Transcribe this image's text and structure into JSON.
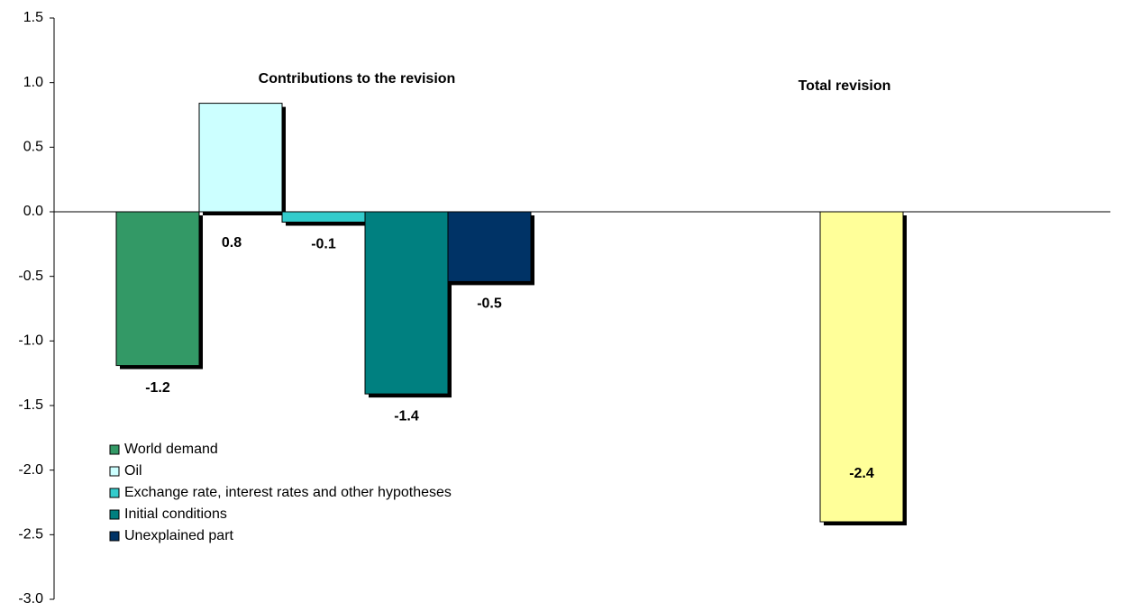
{
  "chart_data": {
    "type": "bar",
    "annotations": [
      "Contributions to the revision",
      "Total revision"
    ],
    "series": [
      {
        "name": "World demand",
        "color": "#339966",
        "values": [
          -1.19
        ],
        "value_labels": [
          "-1.2"
        ]
      },
      {
        "name": "Oil",
        "color": "#ccffff",
        "values": [
          0.84
        ],
        "value_labels": [
          "0.8"
        ]
      },
      {
        "name": "Exchange rate, interest rates and other hypotheses",
        "color": "#33cccc",
        "values": [
          -0.08
        ],
        "value_labels": [
          "-0.1"
        ]
      },
      {
        "name": "Initial conditions",
        "color": "#008080",
        "values": [
          -1.41
        ],
        "value_labels": [
          "-1.4"
        ]
      },
      {
        "name": "Unexplained part",
        "color": "#003366",
        "values": [
          -0.54
        ],
        "value_labels": [
          "-0.5"
        ]
      }
    ],
    "total": {
      "color": "#ffff99",
      "values": [
        -2.4
      ]
    },
    "ylim": [
      -3,
      1.5
    ],
    "yticks": [
      1.5,
      {
        "value": 1,
        "label": "1.0"
      },
      0.5,
      {
        "value": 0,
        "label": "0.0"
      },
      -0.5,
      {
        "value": -1,
        "label": "-1.0"
      },
      -1.5,
      {
        "value": -2,
        "label": "-2.0"
      },
      -2.5,
      {
        "value": -3,
        "label": "-3.0"
      }
    ],
    "legend": "lower-left"
  }
}
